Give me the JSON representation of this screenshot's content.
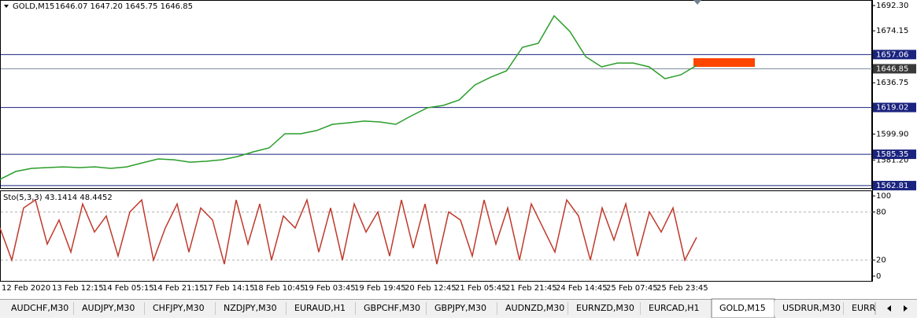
{
  "header": {
    "symbol": "GOLD,M15",
    "quote": "1646.07 1647.20 1645.75 1646.85"
  },
  "chart_data": [
    {
      "type": "line",
      "color": "#2a9d2a",
      "values": [
        1567.3,
        1573.0,
        1575.2,
        1575.8,
        1576.3,
        1575.8,
        1576.3,
        1575.2,
        1576.3,
        1579.2,
        1582.0,
        1581.4,
        1579.7,
        1580.3,
        1581.4,
        1583.7,
        1587.1,
        1589.9,
        1600.1,
        1600.1,
        1602.4,
        1606.9,
        1608.0,
        1609.2,
        1608.6,
        1606.9,
        1613.1,
        1618.8,
        1620.5,
        1624.4,
        1635.2,
        1640.8,
        1645.4,
        1662.3,
        1665.2,
        1684.9,
        1673.6,
        1655.5,
        1648.2,
        1651.0,
        1651.0,
        1648.2,
        1639.7,
        1642.5,
        1649.3
      ],
      "ylim": [
        1560.5,
        1696.3
      ],
      "yticks": [
        {
          "value": 1692.3,
          "label": "1692.30"
        },
        {
          "value": 1674.15,
          "label": "1674.15"
        },
        {
          "value": 1636.75,
          "label": "1636.75"
        },
        {
          "value": 1599.9,
          "label": "1599.90"
        },
        {
          "value": 1581.2,
          "label": "1581.20"
        }
      ],
      "levels": [
        {
          "value": 1657.06,
          "label": "1657.06"
        },
        {
          "value": 1646.85,
          "label": "1646.85"
        },
        {
          "value": 1619.02,
          "label": "1619.02"
        },
        {
          "value": 1585.35,
          "label": "1585.35"
        },
        {
          "value": 1562.81,
          "label": "1562.81"
        }
      ]
    },
    {
      "type": "line",
      "title": "Sto(5,3,3) 43.1414 48.4452",
      "color": "#c0392b",
      "values": [
        60,
        20,
        85,
        95,
        40,
        70,
        30,
        90,
        55,
        75,
        25,
        80,
        95,
        20,
        60,
        90,
        30,
        85,
        70,
        15,
        95,
        40,
        90,
        20,
        75,
        60,
        95,
        30,
        85,
        20,
        90,
        55,
        80,
        25,
        95,
        35,
        90,
        15,
        80,
        70,
        25,
        95,
        40,
        85,
        20,
        90,
        60,
        30,
        95,
        75,
        20,
        85,
        45,
        90,
        25,
        80,
        55,
        85,
        20,
        48.4
      ],
      "ylim": [
        -6.9,
        106.9
      ],
      "yticks": [
        0,
        20,
        80,
        100
      ],
      "levels": [
        20,
        80
      ]
    }
  ],
  "time_axis": {
    "labels": [
      "12 Feb 2020",
      "13 Feb 12:15",
      "14 Feb 05:15",
      "14 Feb 21:15",
      "17 Feb 14:15",
      "18 Feb 10:45",
      "19 Feb 03:45",
      "19 Feb 19:45",
      "20 Feb 12:45",
      "21 Feb 05:45",
      "21 Feb 21:45",
      "24 Feb 14:45",
      "25 Feb 07:45",
      "25 Feb 23:45"
    ]
  },
  "tabs": [
    "AUDCHF,M30",
    "AUDJPY,M30",
    "CHFJPY,M30",
    "NZDJPY,M30",
    "EURAUD,H1",
    "GBPCHF,M30",
    "GBPJPY,M30",
    "AUDNZD,M30",
    "EURNZD,M30",
    "EURCAD,H1",
    "GOLD,M15",
    "USDRUR,M30",
    "EURR"
  ],
  "active_tab_index": 10
}
